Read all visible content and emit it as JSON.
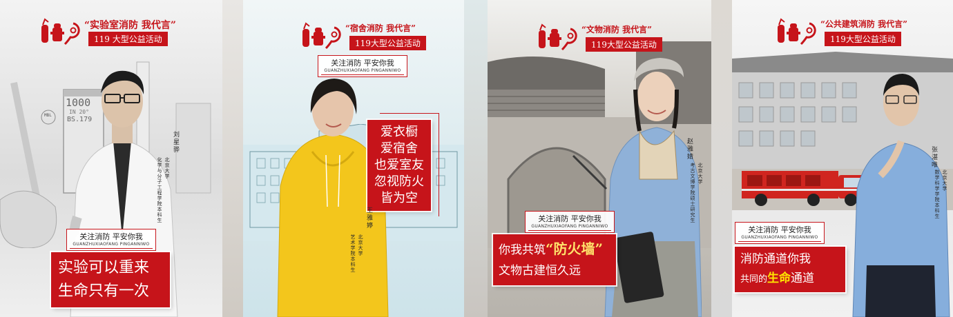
{
  "posters": [
    {
      "headline": "“实验室消防  我代言”",
      "event": "119 大型公益活动",
      "tag_cn": "关注消防  平安你我",
      "tag_pinyin": "GUANZHUXIAOFANG PINGANNIWO",
      "name": "刘星骅",
      "affiliation": [
        "北京大学",
        "化学与分子工程学院本科生"
      ],
      "slogan": [
        "实验可以重来",
        "生命只有一次"
      ],
      "backdrop_text": {
        "number": "1000",
        "scale": "IN 20°",
        "label": "BS.179",
        "tag": "MBL"
      }
    },
    {
      "headline": "“宿舍消防  我代言”",
      "event": "119大型公益活动",
      "tag_cn": "关注消防  平安你我",
      "tag_pinyin": "GUANZHUXIAOFANG PINGANNIWO",
      "name": "王雅婷",
      "affiliation": [
        "北京大学",
        "艺术学院本科生"
      ],
      "slogan": [
        "爱衣橱",
        "爱宿舍",
        "也爱室友",
        "忽视防火",
        "皆为空"
      ]
    },
    {
      "headline": "“文物消防  我代言”",
      "event": "119大型公益活动",
      "tag_cn": "关注消防  平安你我",
      "tag_pinyin": "GUANZHUXIAOFANG PINGANNIWO",
      "name": "赵雅婧",
      "affiliation": [
        "北京大学",
        "考古文博学院硕士研究生"
      ],
      "slogan_prefix": "你我共筑",
      "slogan_highlight": "“防火墙”",
      "slogan_line2": "文物古建恒久远"
    },
    {
      "headline": "“公共建筑消防  我代言”",
      "event": "119大型公益活动",
      "tag_cn": "关注消防  平安你我",
      "tag_pinyin": "GUANZHUXIAOFANG PINGANNIWO",
      "name": "张湛唯",
      "affiliation": [
        "北京大学",
        "数学科学学院本科生"
      ],
      "slogan_line1": "消防通道你我",
      "slogan_prefix": "共同的",
      "slogan_highlight": "生命",
      "slogan_suffix": "通道"
    }
  ],
  "icons": [
    "fire-extinguisher-icon",
    "fire-hydrant-icon",
    "spiral-119-icon"
  ],
  "colors": {
    "brand_red": "#c6141a",
    "highlight_yellow": "#ffe600",
    "hoodie_yellow": "#f3c61c",
    "shirt_blue": "#8fb1d8"
  }
}
